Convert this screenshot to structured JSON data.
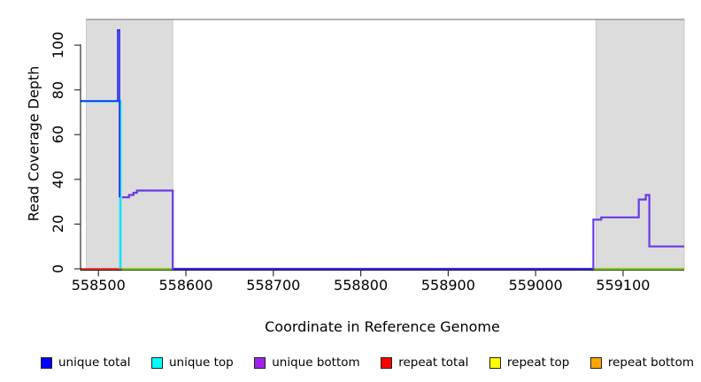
{
  "figure": {
    "xlabel": "Coordinate in Reference Genome",
    "ylabel": "Read Coverage Depth"
  },
  "legend": {
    "items": [
      {
        "label": "unique total",
        "color": "#0000FF"
      },
      {
        "label": "unique top",
        "color": "#00FFFF"
      },
      {
        "label": "unique bottom",
        "color": "#A020F0"
      },
      {
        "label": "repeat total",
        "color": "#FF0000"
      },
      {
        "label": "repeat top",
        "color": "#FFFF00"
      },
      {
        "label": "repeat bottom",
        "color": "#FFA500"
      }
    ]
  },
  "chart_data": {
    "type": "line",
    "title": "",
    "xlabel": "Coordinate in Reference Genome",
    "ylabel": "Read Coverage Depth",
    "xlim": [
      558480,
      559170
    ],
    "ylim": [
      0,
      111.5
    ],
    "x_ticks": [
      558500,
      558600,
      558700,
      558800,
      558900,
      559000,
      559100
    ],
    "y_ticks": [
      0,
      20,
      40,
      60,
      80,
      100
    ],
    "grid": false,
    "legend_position": "bottom",
    "colors": {
      "unique_total": "#2222EE",
      "unique_top": "#00E5FF",
      "unique_bottom": "#6A3AE6",
      "repeat_total": "#FF0000",
      "repeat_top": "#E8E800",
      "repeat_bottom": "#FFA500",
      "zero_overlap_green": "#5FBF5F",
      "shaded_region": "#DCDCDC",
      "plot_border": "#888888"
    },
    "shaded_regions": [
      {
        "x0": 558486,
        "x1": 558585
      },
      {
        "x0": 559069,
        "x1": 559170
      }
    ],
    "top_border_y": 111.5,
    "series": [
      {
        "name": "repeat-top-zero-left",
        "color": "#E8E800",
        "width": 2.6,
        "points": [
          [
            558526,
            0
          ],
          [
            558585,
            0
          ]
        ]
      },
      {
        "name": "repeat-top-zero-right",
        "color": "#E8E800",
        "width": 2.6,
        "points": [
          [
            559066,
            0
          ],
          [
            559170,
            0
          ]
        ]
      },
      {
        "name": "zero-overlap-green-left",
        "color": "#5FBF5F",
        "width": 1.4,
        "points": [
          [
            558526,
            0
          ],
          [
            558585,
            0
          ]
        ]
      },
      {
        "name": "zero-overlap-green-right",
        "color": "#5FBF5F",
        "width": 1.4,
        "points": [
          [
            559066,
            0
          ],
          [
            559170,
            0
          ]
        ]
      },
      {
        "name": "repeat-total",
        "color": "#FF0000",
        "width": 1.5,
        "points": [
          [
            558480,
            0
          ],
          [
            558527,
            0
          ]
        ]
      },
      {
        "name": "unique-top",
        "color": "#00E5FF",
        "width": 2.6,
        "points": [
          [
            558480,
            75
          ],
          [
            558525,
            75
          ],
          [
            558525,
            0
          ]
        ]
      },
      {
        "name": "unique-total-left",
        "color": "#2222EE",
        "width": 1.6,
        "points": [
          [
            558480,
            75
          ],
          [
            558522,
            75
          ],
          [
            558522,
            106.8
          ],
          [
            558524,
            106.8
          ],
          [
            558524,
            32
          ]
        ]
      },
      {
        "name": "unique-bottom",
        "color": "#6A3AE6",
        "width": 2.2,
        "points": [
          [
            558527,
            32
          ],
          [
            558535,
            32
          ],
          [
            558535,
            33
          ],
          [
            558540,
            33
          ],
          [
            558540,
            34
          ],
          [
            558544,
            34
          ],
          [
            558544,
            35
          ],
          [
            558585,
            35
          ],
          [
            558585,
            0
          ],
          [
            559066,
            0
          ],
          [
            559066,
            22
          ],
          [
            559075,
            22
          ],
          [
            559075,
            23
          ],
          [
            559118,
            23
          ],
          [
            559118,
            31
          ],
          [
            559126,
            31
          ],
          [
            559126,
            33
          ],
          [
            559130,
            33
          ],
          [
            559130,
            10
          ],
          [
            559170,
            10
          ]
        ]
      },
      {
        "name": "unique-total-mid",
        "color": "#2222EE",
        "width": 1.3,
        "points": [
          [
            558586,
            0
          ],
          [
            559065,
            0
          ]
        ]
      }
    ]
  }
}
